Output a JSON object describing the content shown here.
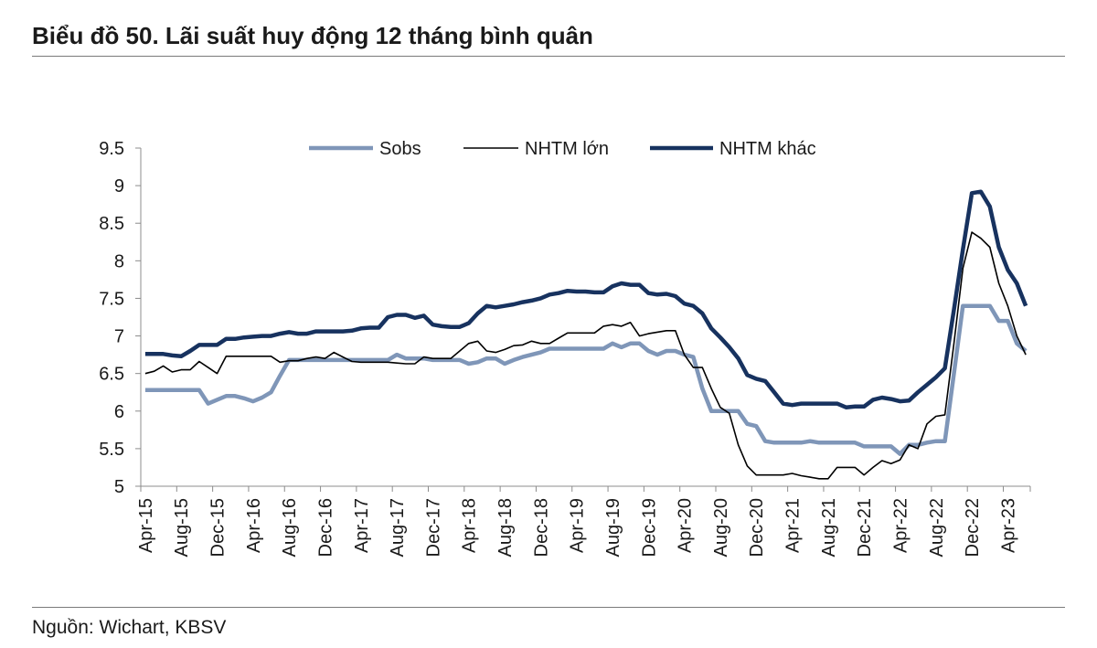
{
  "source": "Nguồn: Wichart, KBSV",
  "chart_data": {
    "type": "line",
    "title": "Biểu đồ 50. Lãi suất huy động 12 tháng bình quân",
    "legend_position": "top",
    "grid": false,
    "ylim": [
      5,
      9.5
    ],
    "y_ticks": [
      5,
      5.5,
      6,
      6.5,
      7,
      7.5,
      8,
      8.5,
      9,
      9.5
    ],
    "x": [
      "Apr-15",
      "May-15",
      "Jun-15",
      "Jul-15",
      "Aug-15",
      "Sep-15",
      "Oct-15",
      "Nov-15",
      "Dec-15",
      "Jan-16",
      "Feb-16",
      "Mar-16",
      "Apr-16",
      "May-16",
      "Jun-16",
      "Jul-16",
      "Aug-16",
      "Sep-16",
      "Oct-16",
      "Nov-16",
      "Dec-16",
      "Jan-17",
      "Feb-17",
      "Mar-17",
      "Apr-17",
      "May-17",
      "Jun-17",
      "Jul-17",
      "Aug-17",
      "Sep-17",
      "Oct-17",
      "Nov-17",
      "Dec-17",
      "Jan-18",
      "Feb-18",
      "Mar-18",
      "Apr-18",
      "May-18",
      "Jun-18",
      "Jul-18",
      "Aug-18",
      "Sep-18",
      "Oct-18",
      "Nov-18",
      "Dec-18",
      "Jan-19",
      "Feb-19",
      "Mar-19",
      "Apr-19",
      "May-19",
      "Jun-19",
      "Jul-19",
      "Aug-19",
      "Sep-19",
      "Oct-19",
      "Nov-19",
      "Dec-19",
      "Jan-20",
      "Feb-20",
      "Mar-20",
      "Apr-20",
      "May-20",
      "Jun-20",
      "Jul-20",
      "Aug-20",
      "Sep-20",
      "Oct-20",
      "Nov-20",
      "Dec-20",
      "Jan-21",
      "Feb-21",
      "Mar-21",
      "Apr-21",
      "May-21",
      "Jun-21",
      "Jul-21",
      "Aug-21",
      "Sep-21",
      "Oct-21",
      "Nov-21",
      "Dec-21",
      "Jan-22",
      "Feb-22",
      "Mar-22",
      "Apr-22",
      "May-22",
      "Jun-22",
      "Jul-22",
      "Aug-22",
      "Sep-22",
      "Oct-22",
      "Nov-22",
      "Dec-22",
      "Jan-23",
      "Feb-23",
      "Mar-23",
      "Apr-23",
      "May-23",
      "Jun-23"
    ],
    "series": [
      {
        "name": "Sobs",
        "color": "#7f96b8",
        "values": [
          6.28,
          6.28,
          6.28,
          6.28,
          6.28,
          6.28,
          6.28,
          6.1,
          6.15,
          6.2,
          6.2,
          6.17,
          6.13,
          6.18,
          6.25,
          6.47,
          6.68,
          6.68,
          6.68,
          6.68,
          6.68,
          6.68,
          6.68,
          6.68,
          6.68,
          6.68,
          6.68,
          6.68,
          6.75,
          6.7,
          6.7,
          6.7,
          6.68,
          6.68,
          6.68,
          6.68,
          6.63,
          6.65,
          6.7,
          6.7,
          6.63,
          6.68,
          6.72,
          6.75,
          6.78,
          6.83,
          6.83,
          6.83,
          6.83,
          6.83,
          6.83,
          6.83,
          6.9,
          6.85,
          6.9,
          6.9,
          6.8,
          6.75,
          6.8,
          6.8,
          6.75,
          6.72,
          6.3,
          6.0,
          6.0,
          6.0,
          6.0,
          5.83,
          5.8,
          5.6,
          5.58,
          5.58,
          5.58,
          5.58,
          5.6,
          5.58,
          5.58,
          5.58,
          5.58,
          5.58,
          5.53,
          5.53,
          5.53,
          5.53,
          5.43,
          5.55,
          5.55,
          5.58,
          5.6,
          5.6,
          6.5,
          7.4,
          7.4,
          7.4,
          7.4,
          7.2,
          7.2,
          6.9,
          6.8
        ]
      },
      {
        "name": "NHTM lớn",
        "color": "#000000",
        "values": [
          6.5,
          6.53,
          6.6,
          6.52,
          6.55,
          6.55,
          6.66,
          6.58,
          6.5,
          6.73,
          6.73,
          6.73,
          6.73,
          6.73,
          6.73,
          6.65,
          6.67,
          6.67,
          6.7,
          6.72,
          6.7,
          6.78,
          6.72,
          6.66,
          6.65,
          6.65,
          6.65,
          6.65,
          6.64,
          6.63,
          6.63,
          6.72,
          6.7,
          6.7,
          6.7,
          6.8,
          6.9,
          6.93,
          6.8,
          6.78,
          6.82,
          6.87,
          6.88,
          6.93,
          6.9,
          6.9,
          6.97,
          7.04,
          7.04,
          7.04,
          7.04,
          7.13,
          7.15,
          7.13,
          7.18,
          7.0,
          7.03,
          7.05,
          7.07,
          7.07,
          6.75,
          6.58,
          6.58,
          6.3,
          6.05,
          5.97,
          5.55,
          5.27,
          5.15,
          5.15,
          5.15,
          5.15,
          5.17,
          5.14,
          5.12,
          5.1,
          5.1,
          5.25,
          5.25,
          5.25,
          5.15,
          5.25,
          5.34,
          5.3,
          5.35,
          5.55,
          5.5,
          5.83,
          5.93,
          5.95,
          6.9,
          7.9,
          8.38,
          8.3,
          8.18,
          7.7,
          7.4,
          7.0,
          6.75
        ]
      },
      {
        "name": "NHTM khác",
        "color": "#17325f",
        "values": [
          6.76,
          6.76,
          6.76,
          6.74,
          6.73,
          6.8,
          6.88,
          6.88,
          6.88,
          6.96,
          6.96,
          6.98,
          6.99,
          7.0,
          7.0,
          7.03,
          7.05,
          7.03,
          7.03,
          7.06,
          7.06,
          7.06,
          7.06,
          7.07,
          7.1,
          7.11,
          7.11,
          7.25,
          7.28,
          7.28,
          7.24,
          7.27,
          7.15,
          7.13,
          7.12,
          7.12,
          7.17,
          7.3,
          7.4,
          7.38,
          7.4,
          7.42,
          7.45,
          7.47,
          7.5,
          7.55,
          7.57,
          7.6,
          7.59,
          7.59,
          7.58,
          7.58,
          7.66,
          7.7,
          7.68,
          7.68,
          7.57,
          7.55,
          7.56,
          7.53,
          7.43,
          7.4,
          7.3,
          7.1,
          6.98,
          6.85,
          6.7,
          6.48,
          6.43,
          6.4,
          6.25,
          6.1,
          6.08,
          6.1,
          6.1,
          6.1,
          6.1,
          6.1,
          6.05,
          6.06,
          6.06,
          6.15,
          6.18,
          6.16,
          6.13,
          6.14,
          6.25,
          6.35,
          6.45,
          6.57,
          7.35,
          8.15,
          8.9,
          8.92,
          8.72,
          8.18,
          7.88,
          7.7,
          7.4
        ]
      }
    ]
  }
}
